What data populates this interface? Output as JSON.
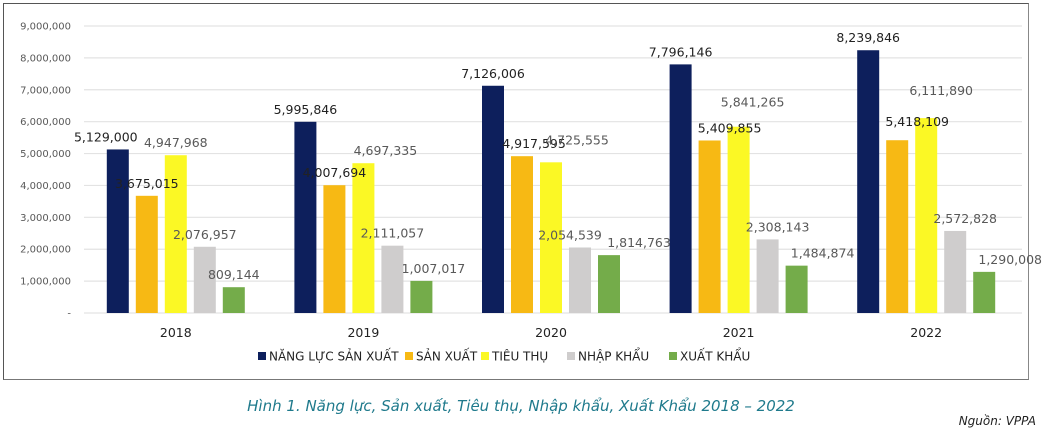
{
  "chart_data": {
    "type": "bar",
    "title": "",
    "xlabel": "",
    "ylabel": "",
    "categories": [
      "2018",
      "2019",
      "2020",
      "2021",
      "2022"
    ],
    "ylim": [
      0,
      9000000
    ],
    "yticks": [
      0,
      1000000,
      2000000,
      3000000,
      4000000,
      5000000,
      6000000,
      7000000,
      8000000,
      9000000
    ],
    "ytick_labels": [
      "-",
      "1,000,000",
      "2,000,000",
      "3,000,000",
      "4,000,000",
      "5,000,000",
      "6,000,000",
      "7,000,000",
      "8,000,000",
      "9,000,000"
    ],
    "grid": true,
    "legend_position": "bottom",
    "series": [
      {
        "name": "NĂNG LỰC SẢN XUẤT",
        "color": "#0d1f5c",
        "label_color": "#222222",
        "values": [
          5129000,
          5995846,
          7126006,
          7796146,
          8239846
        ],
        "labels": [
          "5,129,000",
          "5,995,846",
          "7,126,006",
          "7,796,146",
          "8,239,846"
        ]
      },
      {
        "name": "SẢN XUẤT",
        "color": "#f7b914",
        "label_color": "#222222",
        "values": [
          3675015,
          4007694,
          4917595,
          5409855,
          5418109
        ],
        "labels": [
          "3,675,015",
          "4,007,694",
          "4,917,595",
          "5,409,855",
          "5,418,109"
        ]
      },
      {
        "name": "TIÊU THỤ",
        "color": "#fbf825",
        "label_color": "#595959",
        "values": [
          4947968,
          4697335,
          4725555,
          5841265,
          6111890
        ],
        "labels": [
          "4,947,968",
          "4,697,335",
          "4,725,555",
          "5,841,265",
          "6,111,890"
        ]
      },
      {
        "name": "NHẬP KHẨU",
        "color": "#cfcdcd",
        "label_color": "#595959",
        "values": [
          2076957,
          2111057,
          2054539,
          2308143,
          2572828
        ],
        "labels": [
          "2,076,957",
          "2,111,057",
          "2,054,539",
          "2,308,143",
          "2,572,828"
        ]
      },
      {
        "name": "XUẤT KHẨU",
        "color": "#74ac4a",
        "label_color": "#595959",
        "values": [
          809144,
          1007017,
          1814763,
          1484874,
          1290008
        ],
        "labels": [
          "809,144",
          "1,007,017",
          "1,814,763",
          "1,484,874",
          "1,290,008"
        ]
      }
    ]
  },
  "figure": {
    "caption": "Hình 1. Năng lực, Sản xuất, Tiêu thụ, Nhập khẩu, Xuất Khẩu 2018 – 2022",
    "source": "Nguồn: VPPA"
  }
}
